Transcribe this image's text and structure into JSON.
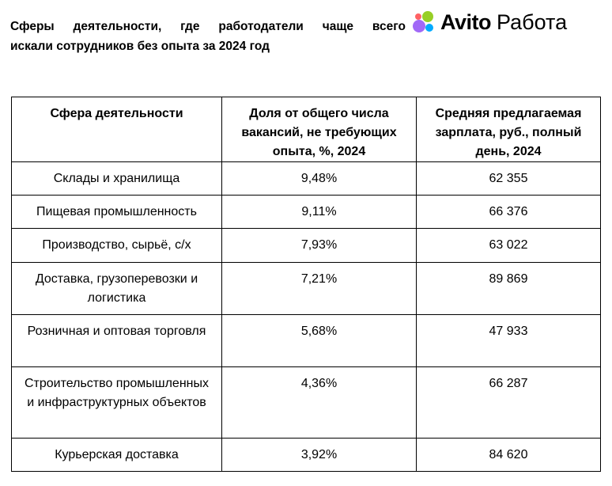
{
  "title": {
    "line1": "Сферы деятельности, где работодатели чаще всего",
    "line2": "искали сотрудников без опыта за 2024 год"
  },
  "logo": {
    "brand": "Avito",
    "product": "Работа",
    "icon": "avito-dots-icon",
    "colors": [
      "#97cf26",
      "#a169f7",
      "#00aaff",
      "#ff6163"
    ]
  },
  "table": {
    "headers": [
      "Сфера деятельности",
      "Доля от общего числа вакансий, не требующих опыта, %, 2024",
      "Средняя предлагаемая зарплата, руб., полный день, 2024"
    ],
    "rows": [
      [
        "Склады и хранилища",
        "9,48%",
        "62 355"
      ],
      [
        "Пищевая промышленность",
        "9,11%",
        "66 376"
      ],
      [
        "Производство, сырьё, с/х",
        "7,93%",
        "63 022"
      ],
      [
        "Доставка, грузоперевозки и логистика",
        "7,21%",
        "89 869"
      ],
      [
        "Розничная и оптовая торговля",
        "5,68%",
        "47 933"
      ],
      [
        "Строительство промышленных и инфраструктурных объектов",
        "4,36%",
        "66 287"
      ],
      [
        "Курьерская доставка",
        "3,92%",
        "84 620"
      ]
    ]
  }
}
